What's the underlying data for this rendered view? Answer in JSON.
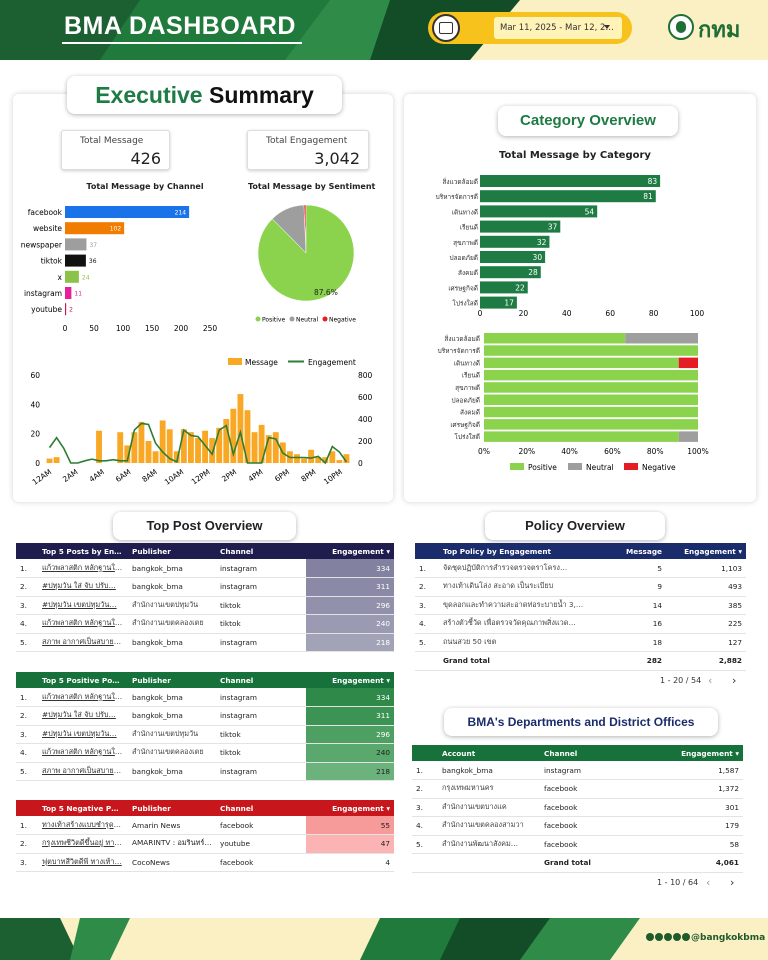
{
  "header": {
    "title": "BMA DASHBOARD",
    "date_range": "Mar 11, 2025 - Mar 12, 2…",
    "logo_text": "กทม"
  },
  "footer": {
    "social_handle": "@bangkokbma"
  },
  "executive": {
    "title_part1": "Executive",
    "title_part2": "Summary",
    "kpi_message_label": "Total Message",
    "kpi_message_value": "426",
    "kpi_engagement_label": "Total Engagement",
    "kpi_engagement_value": "3,042"
  },
  "category_overview": {
    "title": "Category Overview"
  },
  "top_post": {
    "title": "Top Post Overview"
  },
  "policy_overview": {
    "title": "Policy Overview"
  },
  "departments": {
    "title": "BMA's Departments and District Offices"
  },
  "chart_data": [
    {
      "type": "bar",
      "title": "Total Message by Channel",
      "categories": [
        "facebook",
        "website",
        "newspaper",
        "tiktok",
        "x",
        "instagram",
        "youtube"
      ],
      "values": [
        214,
        102,
        37,
        36,
        24,
        11,
        2
      ],
      "colors": [
        "#1a73e8",
        "#f07c00",
        "#9e9e9e",
        "#111111",
        "#8bc34a",
        "#e91e9c",
        "#c2185b"
      ],
      "xlim": [
        0,
        250
      ],
      "xticks": [
        "0",
        "50",
        "100",
        "150",
        "200",
        "250"
      ]
    },
    {
      "type": "pie",
      "title": "Total Message by Sentiment",
      "labels": [
        "Positive",
        "Neutral",
        "Negative"
      ],
      "values": [
        87.6,
        11.7,
        0.7
      ],
      "colors": [
        "#8bd34c",
        "#9e9e9e",
        "#e51c23"
      ],
      "slice_label": "87.6%",
      "legend": "bottom"
    },
    {
      "type": "bar",
      "legend_labels": [
        "Message",
        "Engagement"
      ],
      "legend_colors": [
        "#f9a825",
        "#2e7d32"
      ],
      "messages": [
        3,
        4,
        0,
        0,
        0,
        0,
        0,
        22,
        0,
        0,
        21,
        12,
        21,
        28,
        15,
        8,
        29,
        23,
        8,
        23,
        21,
        17,
        22,
        17,
        24,
        30,
        37,
        47,
        36,
        21,
        26,
        19,
        21,
        14,
        8,
        6,
        3,
        9,
        4,
        4,
        8,
        2,
        6
      ],
      "engagement": [
        140,
        230,
        135,
        0,
        0,
        20,
        35,
        20,
        20,
        30,
        20,
        20,
        300,
        360,
        350,
        180,
        100,
        40,
        10,
        300,
        250,
        240,
        160,
        80,
        300,
        340,
        80,
        280,
        0,
        0,
        0,
        230,
        220,
        90,
        50,
        50,
        50,
        45,
        60,
        0,
        150,
        100,
        10
      ],
      "xtick_labels": [
        "12AM",
        "2AM",
        "4AM",
        "6AM",
        "8AM",
        "10AM",
        "12PM",
        "2PM",
        "4PM",
        "6PM",
        "8PM",
        "10PM"
      ],
      "ylim_left": [
        0,
        60
      ],
      "yticks_left": [
        "0",
        "20",
        "40",
        "60"
      ],
      "ylim_right": [
        0,
        800
      ],
      "yticks_right": [
        "0",
        "200",
        "400",
        "600",
        "800"
      ]
    },
    {
      "type": "bar",
      "title": "Total Message by Category",
      "categories": [
        "สิ่งแวดล้อมดี",
        "บริหารจัดการดี",
        "เดินทางดี",
        "เรียนดี",
        "สุขภาพดี",
        "ปลอดภัยดี",
        "สังคมดี",
        "เศรษฐกิจดี",
        "โปร่งใสดี"
      ],
      "values": [
        83,
        81,
        54,
        37,
        32,
        30,
        28,
        22,
        17
      ],
      "color": "#1e7b43",
      "xlim": [
        0,
        100
      ],
      "xticks": [
        "0",
        "20",
        "40",
        "60",
        "80",
        "100"
      ]
    },
    {
      "type": "bar",
      "stacked": "100%",
      "categories": [
        "สิ่งแวดล้อมดี",
        "บริหารจัดการดี",
        "เดินทางดี",
        "เรียนดี",
        "สุขภาพดี",
        "ปลอดภัยดี",
        "สังคมดี",
        "เศรษฐกิจดี",
        "โปร่งใสดี"
      ],
      "series": [
        {
          "name": "Positive",
          "color": "#8bd34c",
          "values": [
            66,
            100,
            91,
            100,
            100,
            100,
            100,
            100,
            91
          ]
        },
        {
          "name": "Neutral",
          "color": "#9e9e9e",
          "values": [
            34,
            0,
            0,
            0,
            0,
            0,
            0,
            0,
            9
          ]
        },
        {
          "name": "Negative",
          "color": "#e51c23",
          "values": [
            0,
            0,
            9,
            0,
            0,
            0,
            0,
            0,
            0
          ]
        }
      ],
      "xticks": [
        "0%",
        "20%",
        "40%",
        "60%",
        "80%",
        "100%"
      ],
      "legend": "bottom"
    }
  ],
  "tables": {
    "top5": {
      "headers": [
        "Top 5 Posts by En…",
        "Publisher",
        "Channel",
        "Engagement ▾"
      ],
      "rows": [
        {
          "n": "1.",
          "post": "แก้วพลาสติก หลักฐานในก…",
          "pub": "bangkok_bma",
          "ch": "instagram",
          "eng": "334"
        },
        {
          "n": "2.",
          "post": "#ปทุมวัน ใส่ จับ ปรับ…",
          "pub": "bangkok_bma",
          "ch": "instagram",
          "eng": "311"
        },
        {
          "n": "3.",
          "post": "#ปทุมวัน เขตปทุมวัน…",
          "pub": "สำนักงานเขตปทุมวัน",
          "ch": "tiktok",
          "eng": "296"
        },
        {
          "n": "4.",
          "post": "แก้วพลาสติก หลักฐานในก…",
          "pub": "สำนักงานเขตคลองเตย",
          "ch": "tiktok",
          "eng": "240"
        },
        {
          "n": "5.",
          "post": "สภาพ อากาศเป็นสบายก…",
          "pub": "bangkok_bma",
          "ch": "instagram",
          "eng": "218"
        }
      ]
    },
    "pos5": {
      "headers": [
        "Top 5 Positive Po…",
        "Publisher",
        "Channel",
        "Engagement ▾"
      ],
      "rows": [
        {
          "n": "1.",
          "post": "แก้วพลาสติก หลักฐานในก…",
          "pub": "bangkok_bma",
          "ch": "instagram",
          "eng": "334"
        },
        {
          "n": "2.",
          "post": "#ปทุมวัน ใส่ จับ ปรับ…",
          "pub": "bangkok_bma",
          "ch": "instagram",
          "eng": "311"
        },
        {
          "n": "3.",
          "post": "#ปทุมวัน เขตปทุมวัน…",
          "pub": "สำนักงานเขตปทุมวัน",
          "ch": "tiktok",
          "eng": "296"
        },
        {
          "n": "4.",
          "post": "แก้วพลาสติก หลักฐานในก…",
          "pub": "สำนักงานเขตคลองเตย",
          "ch": "tiktok",
          "eng": "240"
        },
        {
          "n": "5.",
          "post": "สภาพ อากาศเป็นสบายก…",
          "pub": "bangkok_bma",
          "ch": "instagram",
          "eng": "218"
        }
      ]
    },
    "neg5": {
      "headers": [
        "Top 5 Negative P…",
        "Publisher",
        "Channel",
        "Engagement ▾"
      ],
      "rows": [
        {
          "n": "1.",
          "post": "ทางเท้าสร้างแบบชำรุดแก้…",
          "pub": "Amarin News",
          "ch": "facebook",
          "eng": "55"
        },
        {
          "n": "2.",
          "post": "กรุงเทพชีวิตดีขึ้นอยู่ ทาง…",
          "pub": "AMARINTV : อมรินทร์ทีวี",
          "ch": "youtube",
          "eng": "47"
        },
        {
          "n": "3.",
          "post": "ฟุตบาทสีวิตดีพี ทางเท้า…",
          "pub": "CocoNews",
          "ch": "facebook",
          "eng": "4"
        }
      ]
    },
    "policy": {
      "headers": [
        "Top Policy by Engagement",
        "Message",
        "Engagement ▾"
      ],
      "rows": [
        {
          "n": "1.",
          "name": "จัดชุดปฏิบัติการสำรวจตรวจตราโครง…",
          "msg": "5",
          "eng": "1,103"
        },
        {
          "n": "2.",
          "name": "ทางเท้าเดินโล่ง สะอาด เป็นระเบียบ",
          "msg": "9",
          "eng": "493"
        },
        {
          "n": "3.",
          "name": "ขุดลอกและทำความสะอาดท่อระบายน้ำ 3,…",
          "msg": "14",
          "eng": "385"
        },
        {
          "n": "4.",
          "name": "สร้างตัวชี้วัด เพื่อตรวจวัดคุณภาพสิ่งแวด…",
          "msg": "16",
          "eng": "225"
        },
        {
          "n": "5.",
          "name": "ถนนสวย 50 เขต",
          "msg": "18",
          "eng": "127"
        }
      ],
      "total_label": "Grand total",
      "total_msg": "282",
      "total_eng": "2,882",
      "pager": "1 - 20 / 54"
    },
    "dept": {
      "headers": [
        "Account",
        "Channel",
        "Engagement ▾"
      ],
      "rows": [
        {
          "n": "1.",
          "acc": "bangkok_bma",
          "ch": "instagram",
          "eng": "1,587"
        },
        {
          "n": "2.",
          "acc": "กรุงเทพมหานคร",
          "ch": "facebook",
          "eng": "1,372"
        },
        {
          "n": "3.",
          "acc": "สำนักงานเขตบางแค",
          "ch": "facebook",
          "eng": "301"
        },
        {
          "n": "4.",
          "acc": "สำนักงานเขตคลองสามวา",
          "ch": "facebook",
          "eng": "179"
        },
        {
          "n": "5.",
          "acc": "สำนักงานพัฒนาสังคม…",
          "ch": "facebook",
          "eng": "58"
        }
      ],
      "total_label": "Grand total",
      "total_eng": "4,061",
      "pager": "1 - 10 / 64"
    }
  }
}
